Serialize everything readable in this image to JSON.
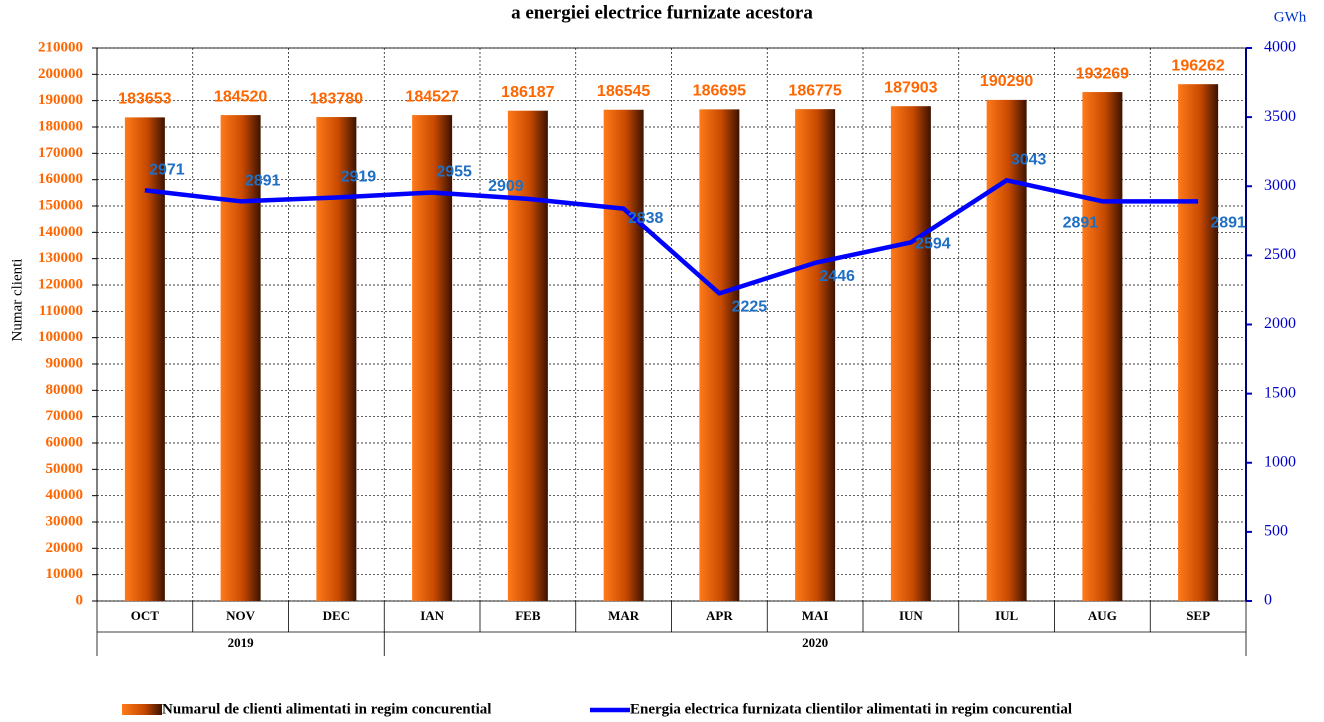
{
  "chart_data": {
    "type": "bar_line",
    "title": "a energiei electrice furnizate acestora",
    "ylabel": "Numar clienti",
    "y2label": "GWh",
    "categories": [
      "OCT",
      "NOV",
      "DEC",
      "IAN",
      "FEB",
      "MAR",
      "APR",
      "MAI",
      "IUN",
      "IUL",
      "AUG",
      "SEP"
    ],
    "groups": [
      {
        "label": "2019",
        "count": 3
      },
      {
        "label": "2020",
        "count": 9
      }
    ],
    "series": [
      {
        "name": "Numarul de clienti alimentati in regim concurential",
        "type": "bar",
        "color": "#ff6600",
        "values": [
          183653,
          184520,
          183780,
          184527,
          186187,
          186545,
          186695,
          186775,
          187903,
          190290,
          193269,
          196262
        ]
      },
      {
        "name": "Energia electrica furnizata clientilor alimentati in regim concurential",
        "type": "line",
        "axis": "y2",
        "color": "#0000ff",
        "values": [
          2971,
          2891,
          2919,
          2955,
          2909,
          2838,
          2225,
          2446,
          2594,
          3043,
          2891,
          2891
        ]
      }
    ],
    "ylim": [
      0,
      210000
    ],
    "yticks": [
      0,
      10000,
      20000,
      30000,
      40000,
      50000,
      60000,
      70000,
      80000,
      90000,
      100000,
      110000,
      120000,
      130000,
      140000,
      150000,
      160000,
      170000,
      180000,
      190000,
      200000,
      210000
    ],
    "y2lim": [
      0,
      4000
    ],
    "y2ticks": [
      0,
      500,
      1000,
      1500,
      2000,
      2500,
      3000,
      3500,
      4000
    ],
    "grid": true
  }
}
